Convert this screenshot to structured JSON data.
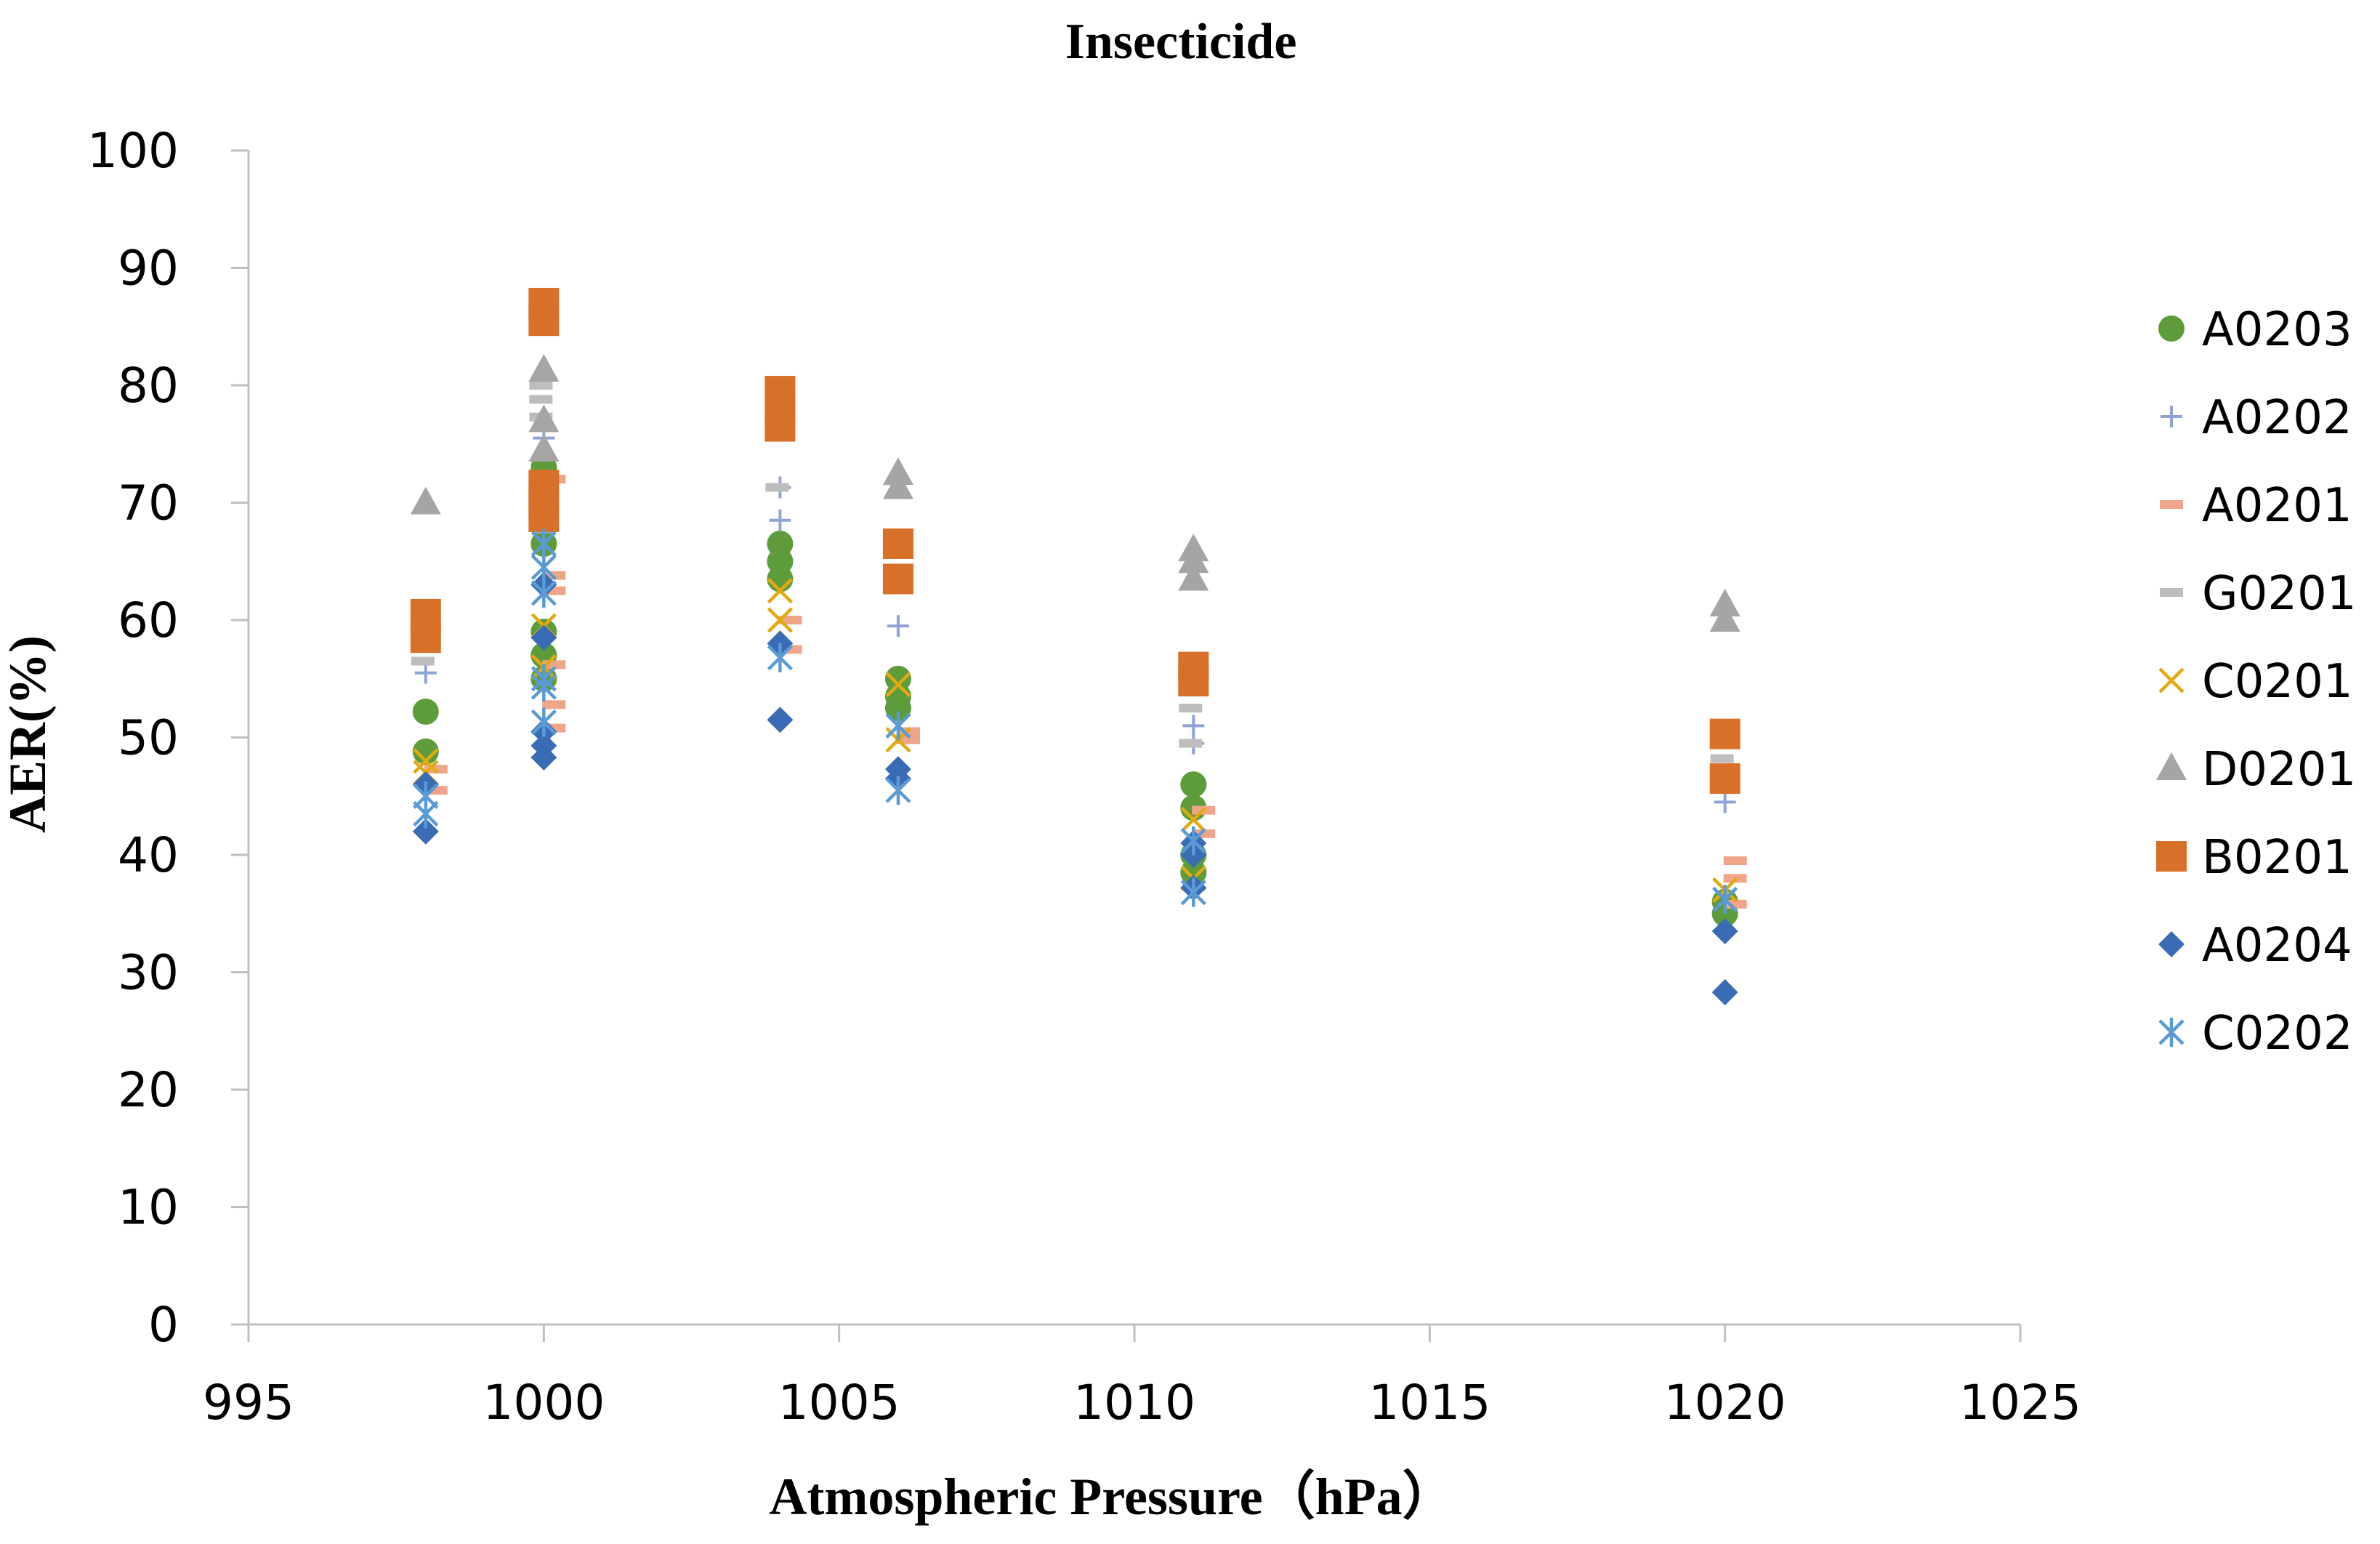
{
  "chart_data": {
    "type": "scatter",
    "title": "Insecticide",
    "xlabel": "Atmospheric Pressure（hPa）",
    "ylabel": "AER(%)",
    "xlim": [
      995,
      1025
    ],
    "ylim": [
      0,
      100
    ],
    "xticks": [
      995,
      1000,
      1005,
      1010,
      1015,
      1020,
      1025
    ],
    "yticks": [
      0,
      10,
      20,
      30,
      40,
      50,
      60,
      70,
      80,
      90,
      100
    ],
    "grid": false,
    "legend_position": "right",
    "series": [
      {
        "name": "A0203",
        "marker": "circle",
        "color": "#5e9b3a",
        "points": [
          {
            "x": 998,
            "y": 52.2
          },
          {
            "x": 998,
            "y": 48.8
          },
          {
            "x": 1000,
            "y": 73
          },
          {
            "x": 1000,
            "y": 66.5
          },
          {
            "x": 1000,
            "y": 59
          },
          {
            "x": 1000,
            "y": 57
          },
          {
            "x": 1000,
            "y": 55
          },
          {
            "x": 1004,
            "y": 66.5
          },
          {
            "x": 1004,
            "y": 65
          },
          {
            "x": 1004,
            "y": 63.5
          },
          {
            "x": 1006,
            "y": 55
          },
          {
            "x": 1006,
            "y": 53.5
          },
          {
            "x": 1006,
            "y": 52.5
          },
          {
            "x": 1011,
            "y": 46
          },
          {
            "x": 1011,
            "y": 44
          },
          {
            "x": 1011,
            "y": 40
          },
          {
            "x": 1011,
            "y": 38.5
          },
          {
            "x": 1020,
            "y": 36
          },
          {
            "x": 1020,
            "y": 35
          }
        ]
      },
      {
        "name": "A0202",
        "marker": "plus",
        "color": "#8fa3d8",
        "points": [
          {
            "x": 998,
            "y": 55.5
          },
          {
            "x": 1000,
            "y": 75.5
          },
          {
            "x": 1000,
            "y": 67.5
          },
          {
            "x": 1004,
            "y": 71.3
          },
          {
            "x": 1004,
            "y": 68.5
          },
          {
            "x": 1006,
            "y": 59.5
          },
          {
            "x": 1011,
            "y": 51
          },
          {
            "x": 1011,
            "y": 49.5
          },
          {
            "x": 1020,
            "y": 44.5
          }
        ]
      },
      {
        "name": "A0201",
        "marker": "dash",
        "color": "#f0a58a",
        "points": [
          {
            "x": 998,
            "y": 47.3
          },
          {
            "x": 998,
            "y": 45.5
          },
          {
            "x": 1000,
            "y": 72
          },
          {
            "x": 1000,
            "y": 63.8
          },
          {
            "x": 1000,
            "y": 62.5
          },
          {
            "x": 1000,
            "y": 56.2
          },
          {
            "x": 1000,
            "y": 52.8
          },
          {
            "x": 1000,
            "y": 50.8
          },
          {
            "x": 1004,
            "y": 60
          },
          {
            "x": 1004,
            "y": 57.5
          },
          {
            "x": 1006,
            "y": 50.5
          },
          {
            "x": 1006,
            "y": 49.8
          },
          {
            "x": 1011,
            "y": 43.8
          },
          {
            "x": 1011,
            "y": 41.8
          },
          {
            "x": 1020,
            "y": 39.5
          },
          {
            "x": 1020,
            "y": 38
          },
          {
            "x": 1020,
            "y": 35.8
          }
        ]
      },
      {
        "name": "G0201",
        "marker": "dash",
        "color": "#bdbdbd",
        "points": [
          {
            "x": 998,
            "y": 56.5
          },
          {
            "x": 1000,
            "y": 80
          },
          {
            "x": 1000,
            "y": 78.8
          },
          {
            "x": 1000,
            "y": 77.3
          },
          {
            "x": 1004,
            "y": 71.3
          },
          {
            "x": 1011,
            "y": 52.5
          },
          {
            "x": 1011,
            "y": 49.5
          },
          {
            "x": 1020,
            "y": 48.2
          }
        ]
      },
      {
        "name": "C0201",
        "marker": "x",
        "color": "#e0aa10",
        "points": [
          {
            "x": 998,
            "y": 48
          },
          {
            "x": 998,
            "y": 47
          },
          {
            "x": 1000,
            "y": 59.5
          },
          {
            "x": 1000,
            "y": 56
          },
          {
            "x": 1004,
            "y": 62.5
          },
          {
            "x": 1004,
            "y": 60
          },
          {
            "x": 1006,
            "y": 54.5
          },
          {
            "x": 1006,
            "y": 49.8
          },
          {
            "x": 1011,
            "y": 43
          },
          {
            "x": 1011,
            "y": 38
          },
          {
            "x": 1020,
            "y": 37
          }
        ]
      },
      {
        "name": "D0201",
        "marker": "triangle",
        "color": "#a5a5a5",
        "points": [
          {
            "x": 998,
            "y": 70
          },
          {
            "x": 1000,
            "y": 81.3
          },
          {
            "x": 1000,
            "y": 77
          },
          {
            "x": 1000,
            "y": 74.5
          },
          {
            "x": 1006,
            "y": 72.5
          },
          {
            "x": 1006,
            "y": 71.3
          },
          {
            "x": 1011,
            "y": 66
          },
          {
            "x": 1011,
            "y": 65
          },
          {
            "x": 1011,
            "y": 63.5
          },
          {
            "x": 1020,
            "y": 61.3
          },
          {
            "x": 1020,
            "y": 60
          }
        ]
      },
      {
        "name": "B0201",
        "marker": "square",
        "color": "#d9702a",
        "points": [
          {
            "x": 998,
            "y": 60.5
          },
          {
            "x": 998,
            "y": 58.5
          },
          {
            "x": 1000,
            "y": 87
          },
          {
            "x": 1000,
            "y": 85.5
          },
          {
            "x": 1000,
            "y": 71.5
          },
          {
            "x": 1000,
            "y": 70
          },
          {
            "x": 1000,
            "y": 68.8
          },
          {
            "x": 1004,
            "y": 79.5
          },
          {
            "x": 1004,
            "y": 78
          },
          {
            "x": 1004,
            "y": 76.5
          },
          {
            "x": 1006,
            "y": 66.5
          },
          {
            "x": 1006,
            "y": 63.5
          },
          {
            "x": 1011,
            "y": 56
          },
          {
            "x": 1011,
            "y": 54.8
          },
          {
            "x": 1020,
            "y": 50.3
          },
          {
            "x": 1020,
            "y": 46.5
          }
        ]
      },
      {
        "name": "A0204",
        "marker": "diamond",
        "color": "#3a6cb5",
        "points": [
          {
            "x": 998,
            "y": 46
          },
          {
            "x": 998,
            "y": 42
          },
          {
            "x": 1000,
            "y": 63
          },
          {
            "x": 1000,
            "y": 58.5
          },
          {
            "x": 1000,
            "y": 50.5
          },
          {
            "x": 1000,
            "y": 49.3
          },
          {
            "x": 1000,
            "y": 48.3
          },
          {
            "x": 1004,
            "y": 58
          },
          {
            "x": 1004,
            "y": 51.5
          },
          {
            "x": 1006,
            "y": 47.3
          },
          {
            "x": 1006,
            "y": 46.5
          },
          {
            "x": 1011,
            "y": 41
          },
          {
            "x": 1011,
            "y": 40
          },
          {
            "x": 1011,
            "y": 37.2
          },
          {
            "x": 1020,
            "y": 33.5
          },
          {
            "x": 1020,
            "y": 28.3
          }
        ]
      },
      {
        "name": "C0202",
        "marker": "asterisk",
        "color": "#5b9bd5",
        "points": [
          {
            "x": 998,
            "y": 45
          },
          {
            "x": 998,
            "y": 43.5
          },
          {
            "x": 1000,
            "y": 66.5
          },
          {
            "x": 1000,
            "y": 64.5
          },
          {
            "x": 1000,
            "y": 62.3
          },
          {
            "x": 1000,
            "y": 55
          },
          {
            "x": 1000,
            "y": 54.3
          },
          {
            "x": 1000,
            "y": 51.3
          },
          {
            "x": 1004,
            "y": 56.8
          },
          {
            "x": 1006,
            "y": 51
          },
          {
            "x": 1006,
            "y": 45.5
          },
          {
            "x": 1011,
            "y": 41.2
          },
          {
            "x": 1011,
            "y": 36.8
          },
          {
            "x": 1020,
            "y": 36.2
          }
        ]
      }
    ]
  }
}
